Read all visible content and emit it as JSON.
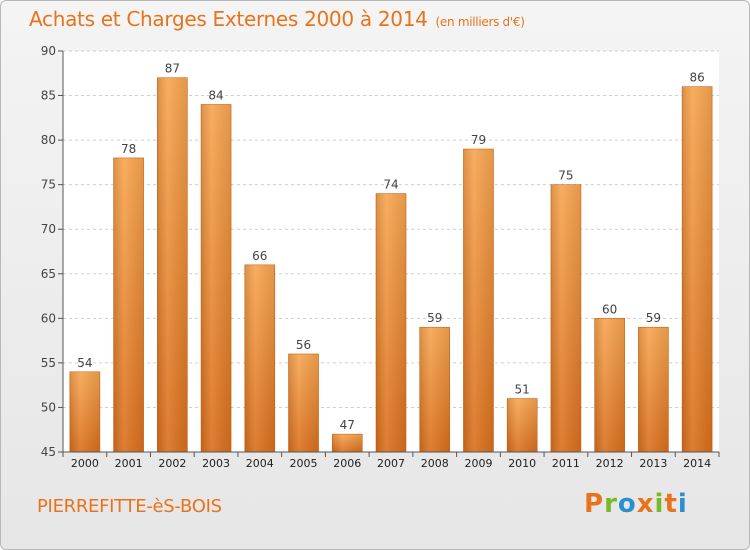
{
  "chart_data": {
    "type": "bar",
    "title": "Achats et Charges Externes 2000 à 2014",
    "unit_note": "(en milliers d'€)",
    "location": "PIERREFITTE-èS-BOIS",
    "categories": [
      "2000",
      "2001",
      "2002",
      "2003",
      "2004",
      "2005",
      "2006",
      "2007",
      "2008",
      "2009",
      "2010",
      "2011",
      "2012",
      "2013",
      "2014"
    ],
    "values": [
      54,
      78,
      87,
      84,
      66,
      56,
      47,
      74,
      59,
      79,
      51,
      75,
      60,
      59,
      86
    ],
    "ylim": [
      45,
      90
    ],
    "yticks": [
      45,
      50,
      55,
      60,
      65,
      70,
      75,
      80,
      85,
      90
    ],
    "grid": "horizontal dashed",
    "bar_color": "#f0963c"
  },
  "logo": {
    "text": "Proxiti"
  }
}
